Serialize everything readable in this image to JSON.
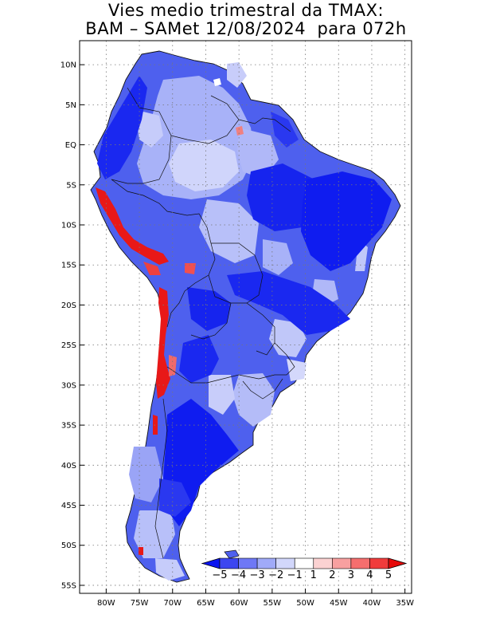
{
  "title": {
    "line1": "Vies medio trimestral da TMAX:",
    "line2": "BAM – SAMet 12/08/2024  para 072h"
  },
  "map": {
    "region": "South America",
    "lon_range": [
      -84,
      -34
    ],
    "lat_range": [
      -56,
      13
    ],
    "lat_ticks": [
      {
        "value": 10,
        "label": "10N"
      },
      {
        "value": 5,
        "label": "5N"
      },
      {
        "value": 0,
        "label": "EQ"
      },
      {
        "value": -5,
        "label": "5S"
      },
      {
        "value": -10,
        "label": "10S"
      },
      {
        "value": -15,
        "label": "15S"
      },
      {
        "value": -20,
        "label": "20S"
      },
      {
        "value": -25,
        "label": "25S"
      },
      {
        "value": -30,
        "label": "30S"
      },
      {
        "value": -35,
        "label": "35S"
      },
      {
        "value": -40,
        "label": "40S"
      },
      {
        "value": -45,
        "label": "45S"
      },
      {
        "value": -50,
        "label": "50S"
      },
      {
        "value": -55,
        "label": "55S"
      }
    ],
    "lon_ticks": [
      {
        "value": -80,
        "label": "80W"
      },
      {
        "value": -75,
        "label": "75W"
      },
      {
        "value": -70,
        "label": "70W"
      },
      {
        "value": -65,
        "label": "65W"
      },
      {
        "value": -60,
        "label": "60W"
      },
      {
        "value": -55,
        "label": "55W"
      },
      {
        "value": -50,
        "label": "50W"
      },
      {
        "value": -45,
        "label": "45W"
      },
      {
        "value": -40,
        "label": "40W"
      },
      {
        "value": -35,
        "label": "35W"
      }
    ],
    "grid": true,
    "grid_style": "dotted",
    "land_color_default": "#5a6cf0"
  },
  "colorbar": {
    "labels": [
      "−5",
      "−4",
      "−3",
      "−2",
      "−1",
      "1",
      "2",
      "3",
      "4",
      "5"
    ],
    "colors": [
      "#0a14f0",
      "#3c46f0",
      "#6e78f5",
      "#a0aaf8",
      "#d2d7fb",
      "#ffffff",
      "#fbd2d2",
      "#f8a0a0",
      "#f56e6e",
      "#f03c3c",
      "#e60a0a"
    ],
    "extend": "both"
  }
}
